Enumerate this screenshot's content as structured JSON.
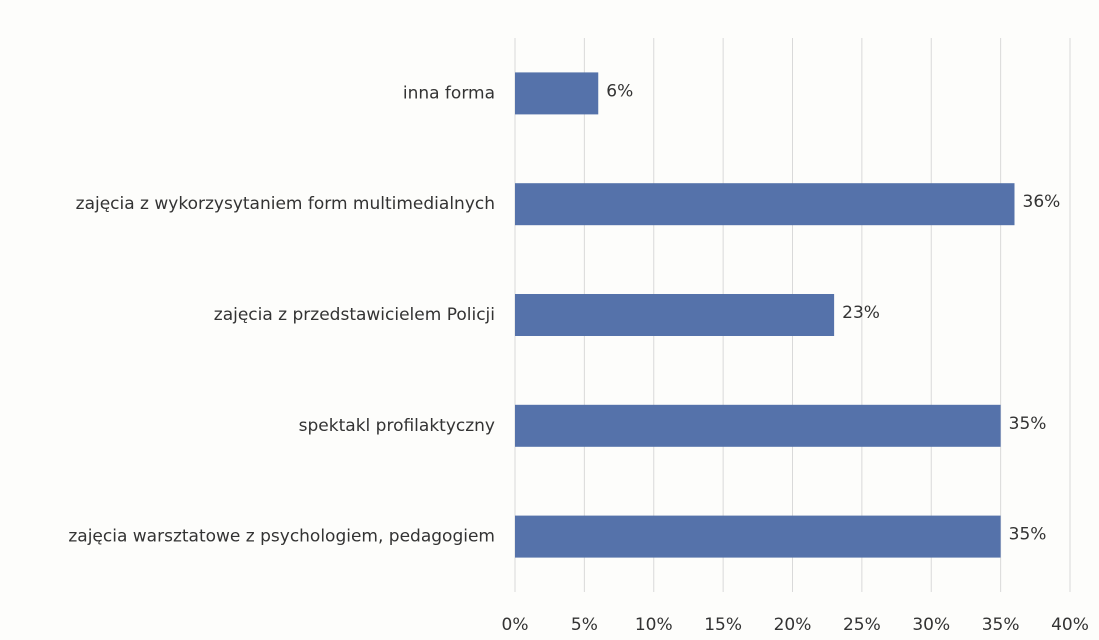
{
  "chart_data": {
    "type": "bar",
    "orientation": "horizontal",
    "categories": [
      "inna forma",
      "zajęcia z wykorzysytaniem form multimedialnych",
      "zajęcia z przedstawicielem Policji",
      "spektakl profilaktyczny",
      "zajęcia warsztatowe z psychologiem, pedagogiem"
    ],
    "values": [
      6,
      36,
      23,
      35,
      35
    ],
    "value_labels": [
      "6%",
      "36%",
      "23%",
      "35%",
      "35%"
    ],
    "color": "#5572aa",
    "xlim": [
      0,
      40
    ],
    "xticks": [
      {
        "value": 0,
        "label": "0%"
      },
      {
        "value": 5,
        "label": "5%"
      },
      {
        "value": 10,
        "label": "10%"
      },
      {
        "value": 15,
        "label": "15%"
      },
      {
        "value": 20,
        "label": "20%"
      },
      {
        "value": 25,
        "label": "25%"
      },
      {
        "value": 30,
        "label": "30%"
      },
      {
        "value": 35,
        "label": "35%"
      },
      {
        "value": 40,
        "label": "40%"
      }
    ],
    "grid": true
  }
}
